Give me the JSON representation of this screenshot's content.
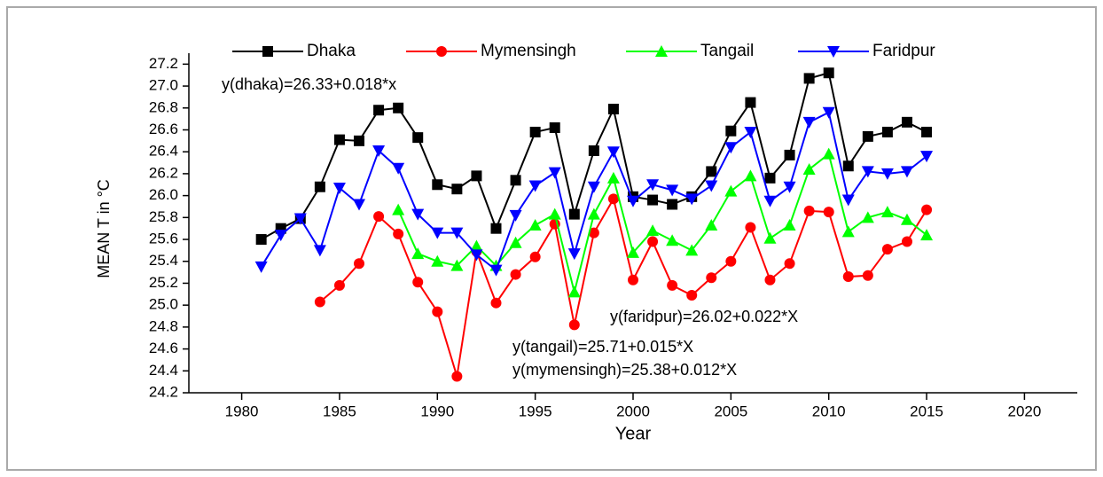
{
  "chart_data": {
    "type": "line",
    "x_label": "Year",
    "y_label": "MEAN T in °C",
    "x": [
      1981,
      1982,
      1983,
      1984,
      1985,
      1986,
      1987,
      1988,
      1989,
      1990,
      1991,
      1992,
      1993,
      1994,
      1995,
      1996,
      1997,
      1998,
      1999,
      2000,
      2001,
      2002,
      2003,
      2004,
      2005,
      2006,
      2007,
      2008,
      2009,
      2010,
      2011,
      2012,
      2013,
      2014,
      2015
    ],
    "series": [
      {
        "name": "Dhaka",
        "color": "#000000",
        "marker": "square",
        "values": [
          25.6,
          25.7,
          25.79,
          26.08,
          26.51,
          26.5,
          26.78,
          26.8,
          26.53,
          26.1,
          26.06,
          26.18,
          25.7,
          26.14,
          26.58,
          26.62,
          25.83,
          26.41,
          26.79,
          25.99,
          25.96,
          25.92,
          25.99,
          26.22,
          26.59,
          26.85,
          26.16,
          26.37,
          27.07,
          27.12,
          26.27,
          26.54,
          26.58,
          26.67,
          26.58
        ]
      },
      {
        "name": "Mymensingh",
        "color": "#ff0000",
        "marker": "circle",
        "values": [
          null,
          null,
          null,
          25.03,
          25.18,
          25.38,
          25.81,
          25.65,
          25.21,
          24.94,
          24.35,
          25.49,
          25.02,
          25.28,
          25.44,
          25.74,
          24.82,
          25.66,
          25.97,
          25.23,
          25.58,
          25.18,
          25.09,
          25.25,
          25.4,
          25.71,
          25.23,
          25.38,
          25.86,
          25.85,
          25.26,
          25.27,
          25.51,
          25.58,
          25.87
        ]
      },
      {
        "name": "Tangail",
        "color": "#00ff00",
        "marker": "triangle-up",
        "values": [
          null,
          null,
          null,
          null,
          null,
          null,
          null,
          25.87,
          25.47,
          25.4,
          25.36,
          25.54,
          25.36,
          25.57,
          25.73,
          25.83,
          25.12,
          25.83,
          26.16,
          25.48,
          25.68,
          25.59,
          25.5,
          25.73,
          26.04,
          26.18,
          25.61,
          25.73,
          26.24,
          26.38,
          25.67,
          25.8,
          25.85,
          25.78,
          25.64
        ]
      },
      {
        "name": "Faridpur",
        "color": "#0000ff",
        "marker": "triangle-down",
        "values": [
          25.35,
          25.64,
          25.79,
          25.5,
          26.07,
          25.92,
          26.41,
          26.25,
          25.83,
          25.66,
          25.66,
          25.46,
          25.32,
          25.82,
          26.09,
          26.21,
          25.47,
          26.08,
          26.4,
          25.95,
          26.1,
          26.05,
          25.97,
          26.09,
          26.44,
          26.58,
          25.95,
          26.08,
          26.67,
          26.76,
          25.96,
          26.22,
          26.2,
          26.22,
          26.36
        ]
      }
    ],
    "annotations": [
      "y(dhaka)=26.33+0.018*x",
      "y(faridpur)=26.02+0.022*X",
      "y(tangail)=25.71+0.015*X",
      "y(mymensingh)=25.38+0.012*X"
    ],
    "xlim": [
      1977.3,
      2022.7
    ],
    "xticks": [
      1980,
      1985,
      1990,
      1995,
      2000,
      2005,
      2010,
      2015,
      2020
    ],
    "ylim": [
      24.2,
      27.3
    ],
    "yticks": [
      24.2,
      24.4,
      24.6,
      24.8,
      {
        "value": 25,
        "label": "25.0"
      },
      25.2,
      25.4,
      25.6,
      25.8,
      {
        "value": 26,
        "label": "26.0"
      },
      26.2,
      26.4,
      26.6,
      26.8,
      {
        "value": 27,
        "label": "27.0"
      },
      27.2
    ],
    "grid": false
  }
}
